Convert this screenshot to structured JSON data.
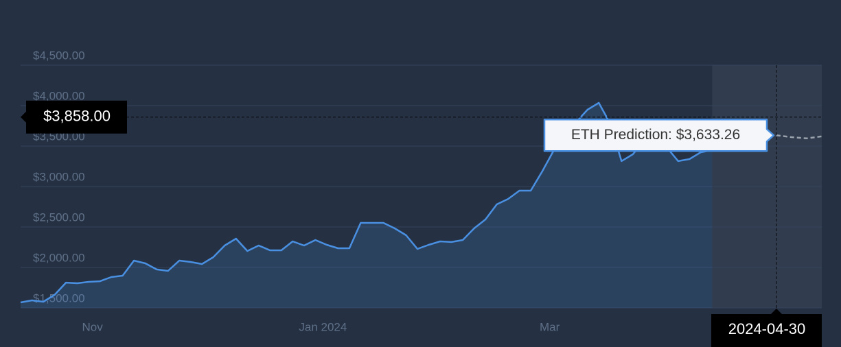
{
  "chart_data": {
    "type": "line",
    "x": [
      "2023-10-13",
      "2023-10-16",
      "2023-10-19",
      "2023-10-22",
      "2023-10-25",
      "2023-10-28",
      "2023-10-31",
      "2023-11-03",
      "2023-11-06",
      "2023-11-09",
      "2023-11-12",
      "2023-11-15",
      "2023-11-18",
      "2023-11-21",
      "2023-11-24",
      "2023-11-27",
      "2023-11-30",
      "2023-12-03",
      "2023-12-06",
      "2023-12-09",
      "2023-12-12",
      "2023-12-15",
      "2023-12-18",
      "2023-12-21",
      "2023-12-24",
      "2023-12-27",
      "2023-12-30",
      "2024-01-02",
      "2024-01-05",
      "2024-01-08",
      "2024-01-11",
      "2024-01-14",
      "2024-01-17",
      "2024-01-20",
      "2024-01-23",
      "2024-01-26",
      "2024-01-29",
      "2024-02-01",
      "2024-02-04",
      "2024-02-07",
      "2024-02-10",
      "2024-02-13",
      "2024-02-16",
      "2024-02-19",
      "2024-02-22",
      "2024-02-25",
      "2024-02-28",
      "2024-03-02",
      "2024-03-05",
      "2024-03-08",
      "2024-03-11",
      "2024-03-14",
      "2024-03-17",
      "2024-03-20",
      "2024-03-23",
      "2024-03-26",
      "2024-03-29",
      "2024-04-01",
      "2024-04-04",
      "2024-04-07",
      "2024-04-10",
      "2024-04-13"
    ],
    "series": [
      {
        "color": "#4a90e2",
        "values": [
          1568,
          1593,
          1576,
          1661,
          1813,
          1805,
          1822,
          1830,
          1881,
          1898,
          2085,
          2051,
          1975,
          1958,
          2085,
          2068,
          2042,
          2127,
          2271,
          2356,
          2203,
          2271,
          2212,
          2212,
          2322,
          2271,
          2339,
          2280,
          2237,
          2237,
          2551,
          2551,
          2551,
          2483,
          2398,
          2229,
          2280,
          2322,
          2314,
          2339,
          2483,
          2593,
          2780,
          2847,
          2949,
          2949,
          3186,
          3441,
          3568,
          3797,
          3949,
          4034,
          3780,
          3314,
          3398,
          3568,
          3525,
          3483,
          3314,
          3339,
          3424,
          3450
        ]
      },
      {
        "color": "#9aa3ad",
        "x": [
          "2024-04-30",
          "2024-05-04",
          "2024-05-08",
          "2024-05-12"
        ],
        "values": [
          3633.26,
          3610,
          3595,
          3620
        ]
      }
    ],
    "xlim": [
      "2023-10-13",
      "2024-05-12"
    ],
    "xticks": [
      {
        "value": "2023-11-01",
        "label": "Nov"
      },
      {
        "value": "2024-01-01",
        "label": "Jan 2024"
      },
      {
        "value": "2024-03-01",
        "label": "Mar"
      }
    ],
    "ylim": [
      1500,
      4500
    ],
    "yticks": [
      {
        "value": 1500,
        "label": "$1,500.00"
      },
      {
        "value": 2000,
        "label": "$2,000.00"
      },
      {
        "value": 2500,
        "label": "$2,500.00"
      },
      {
        "value": 3000,
        "label": "$3,000.00"
      },
      {
        "value": 3500,
        "label": "$3,500.00"
      },
      {
        "value": 4000,
        "label": "$4,000.00"
      },
      {
        "value": 4500,
        "label": "$4,500.00"
      }
    ],
    "grid": true,
    "crosshair": {
      "value": 3858,
      "label": "$3,858.00",
      "date": "2024-04-30"
    },
    "tooltip": "ETH Prediction: $3,633.26"
  }
}
